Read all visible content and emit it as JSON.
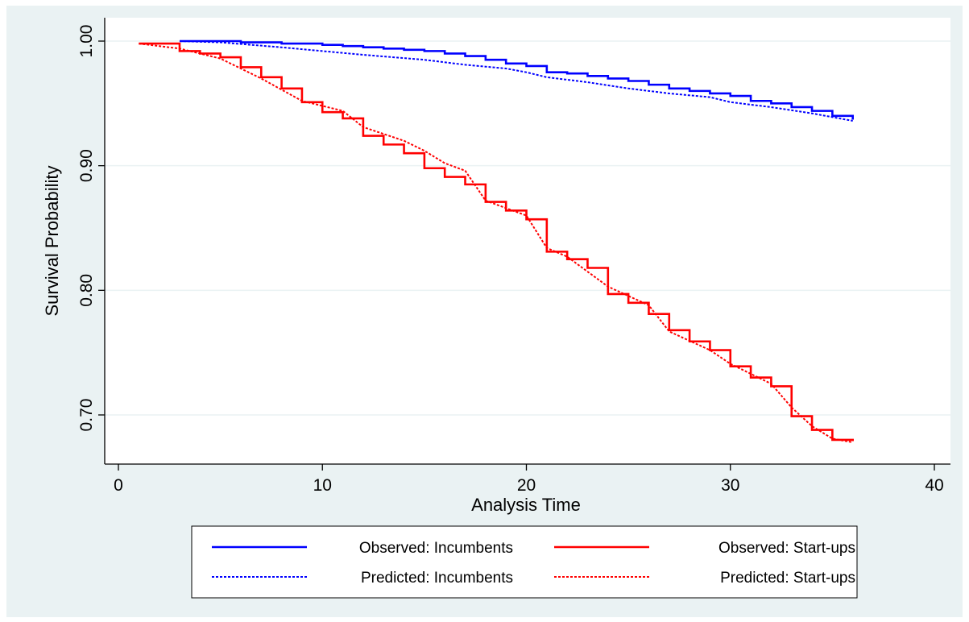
{
  "chart_data": {
    "type": "line",
    "title": "",
    "xlabel": "Analysis Time",
    "ylabel": "Survival Probability",
    "xlim": [
      -1,
      40
    ],
    "ylim": [
      0.67,
      1.02
    ],
    "xticks": [
      0,
      10,
      20,
      30,
      40
    ],
    "xtick_labels": [
      "0",
      "10",
      "20",
      "30",
      "40"
    ],
    "yticks": [
      0.7,
      0.8,
      0.9,
      1.0
    ],
    "ytick_labels": [
      "0.70",
      "0.80",
      "0.90",
      "1.00"
    ],
    "grid": "horizontal",
    "legend_position": "bottom",
    "series": [
      {
        "name": "Observed: Incumbents",
        "color": "#0000ff",
        "style": "step-solid",
        "x": [
          3,
          6,
          8,
          10,
          11,
          12,
          13,
          14,
          15,
          16,
          17,
          18,
          19,
          20,
          21,
          22,
          23,
          24,
          25,
          26,
          27,
          28,
          29,
          30,
          31,
          32,
          33,
          34,
          35,
          36
        ],
        "y": [
          1.0,
          0.999,
          0.998,
          0.997,
          0.996,
          0.995,
          0.994,
          0.993,
          0.992,
          0.99,
          0.988,
          0.985,
          0.982,
          0.98,
          0.975,
          0.974,
          0.972,
          0.97,
          0.968,
          0.965,
          0.962,
          0.96,
          0.958,
          0.956,
          0.952,
          0.95,
          0.947,
          0.944,
          0.94,
          0.937
        ]
      },
      {
        "name": "Predicted: Incumbents",
        "color": "#0000ff",
        "style": "dotted",
        "x": [
          3,
          5,
          8,
          10,
          12,
          15,
          17,
          19,
          20,
          21,
          23,
          25,
          27,
          29,
          30,
          32,
          34,
          36
        ],
        "y": [
          1.0,
          0.999,
          0.995,
          0.992,
          0.989,
          0.985,
          0.981,
          0.978,
          0.975,
          0.971,
          0.967,
          0.962,
          0.958,
          0.955,
          0.951,
          0.947,
          0.942,
          0.936
        ]
      },
      {
        "name": "Observed: Start-ups",
        "color": "#ff0000",
        "style": "step-solid",
        "x": [
          1,
          3,
          4,
          5,
          6,
          7,
          8,
          9,
          10,
          11,
          12,
          13,
          14,
          15,
          16,
          17,
          18,
          19,
          20,
          21,
          22,
          23,
          24,
          25,
          26,
          27,
          28,
          29,
          30,
          31,
          32,
          33,
          34,
          35,
          36
        ],
        "y": [
          0.998,
          0.992,
          0.99,
          0.987,
          0.979,
          0.971,
          0.962,
          0.951,
          0.943,
          0.938,
          0.924,
          0.917,
          0.91,
          0.898,
          0.891,
          0.885,
          0.871,
          0.864,
          0.857,
          0.831,
          0.825,
          0.818,
          0.797,
          0.79,
          0.781,
          0.768,
          0.759,
          0.752,
          0.739,
          0.73,
          0.723,
          0.699,
          0.688,
          0.68,
          0.679
        ]
      },
      {
        "name": "Predicted: Start-ups",
        "color": "#ff0000",
        "style": "dotted",
        "x": [
          1,
          3,
          5,
          7,
          9,
          11,
          12,
          14,
          15,
          16,
          17,
          18,
          20,
          21,
          22,
          24,
          26,
          27,
          29,
          30,
          32,
          33,
          34,
          35,
          36
        ],
        "y": [
          0.998,
          0.994,
          0.986,
          0.97,
          0.952,
          0.944,
          0.931,
          0.92,
          0.912,
          0.902,
          0.896,
          0.872,
          0.86,
          0.834,
          0.827,
          0.803,
          0.788,
          0.767,
          0.752,
          0.741,
          0.725,
          0.706,
          0.691,
          0.681,
          0.678
        ]
      }
    ],
    "legend": {
      "columns": 2,
      "entries": [
        "Observed: Incumbents",
        "Observed: Start-ups",
        "Predicted: Incumbents",
        "Predicted: Start-ups"
      ]
    }
  }
}
